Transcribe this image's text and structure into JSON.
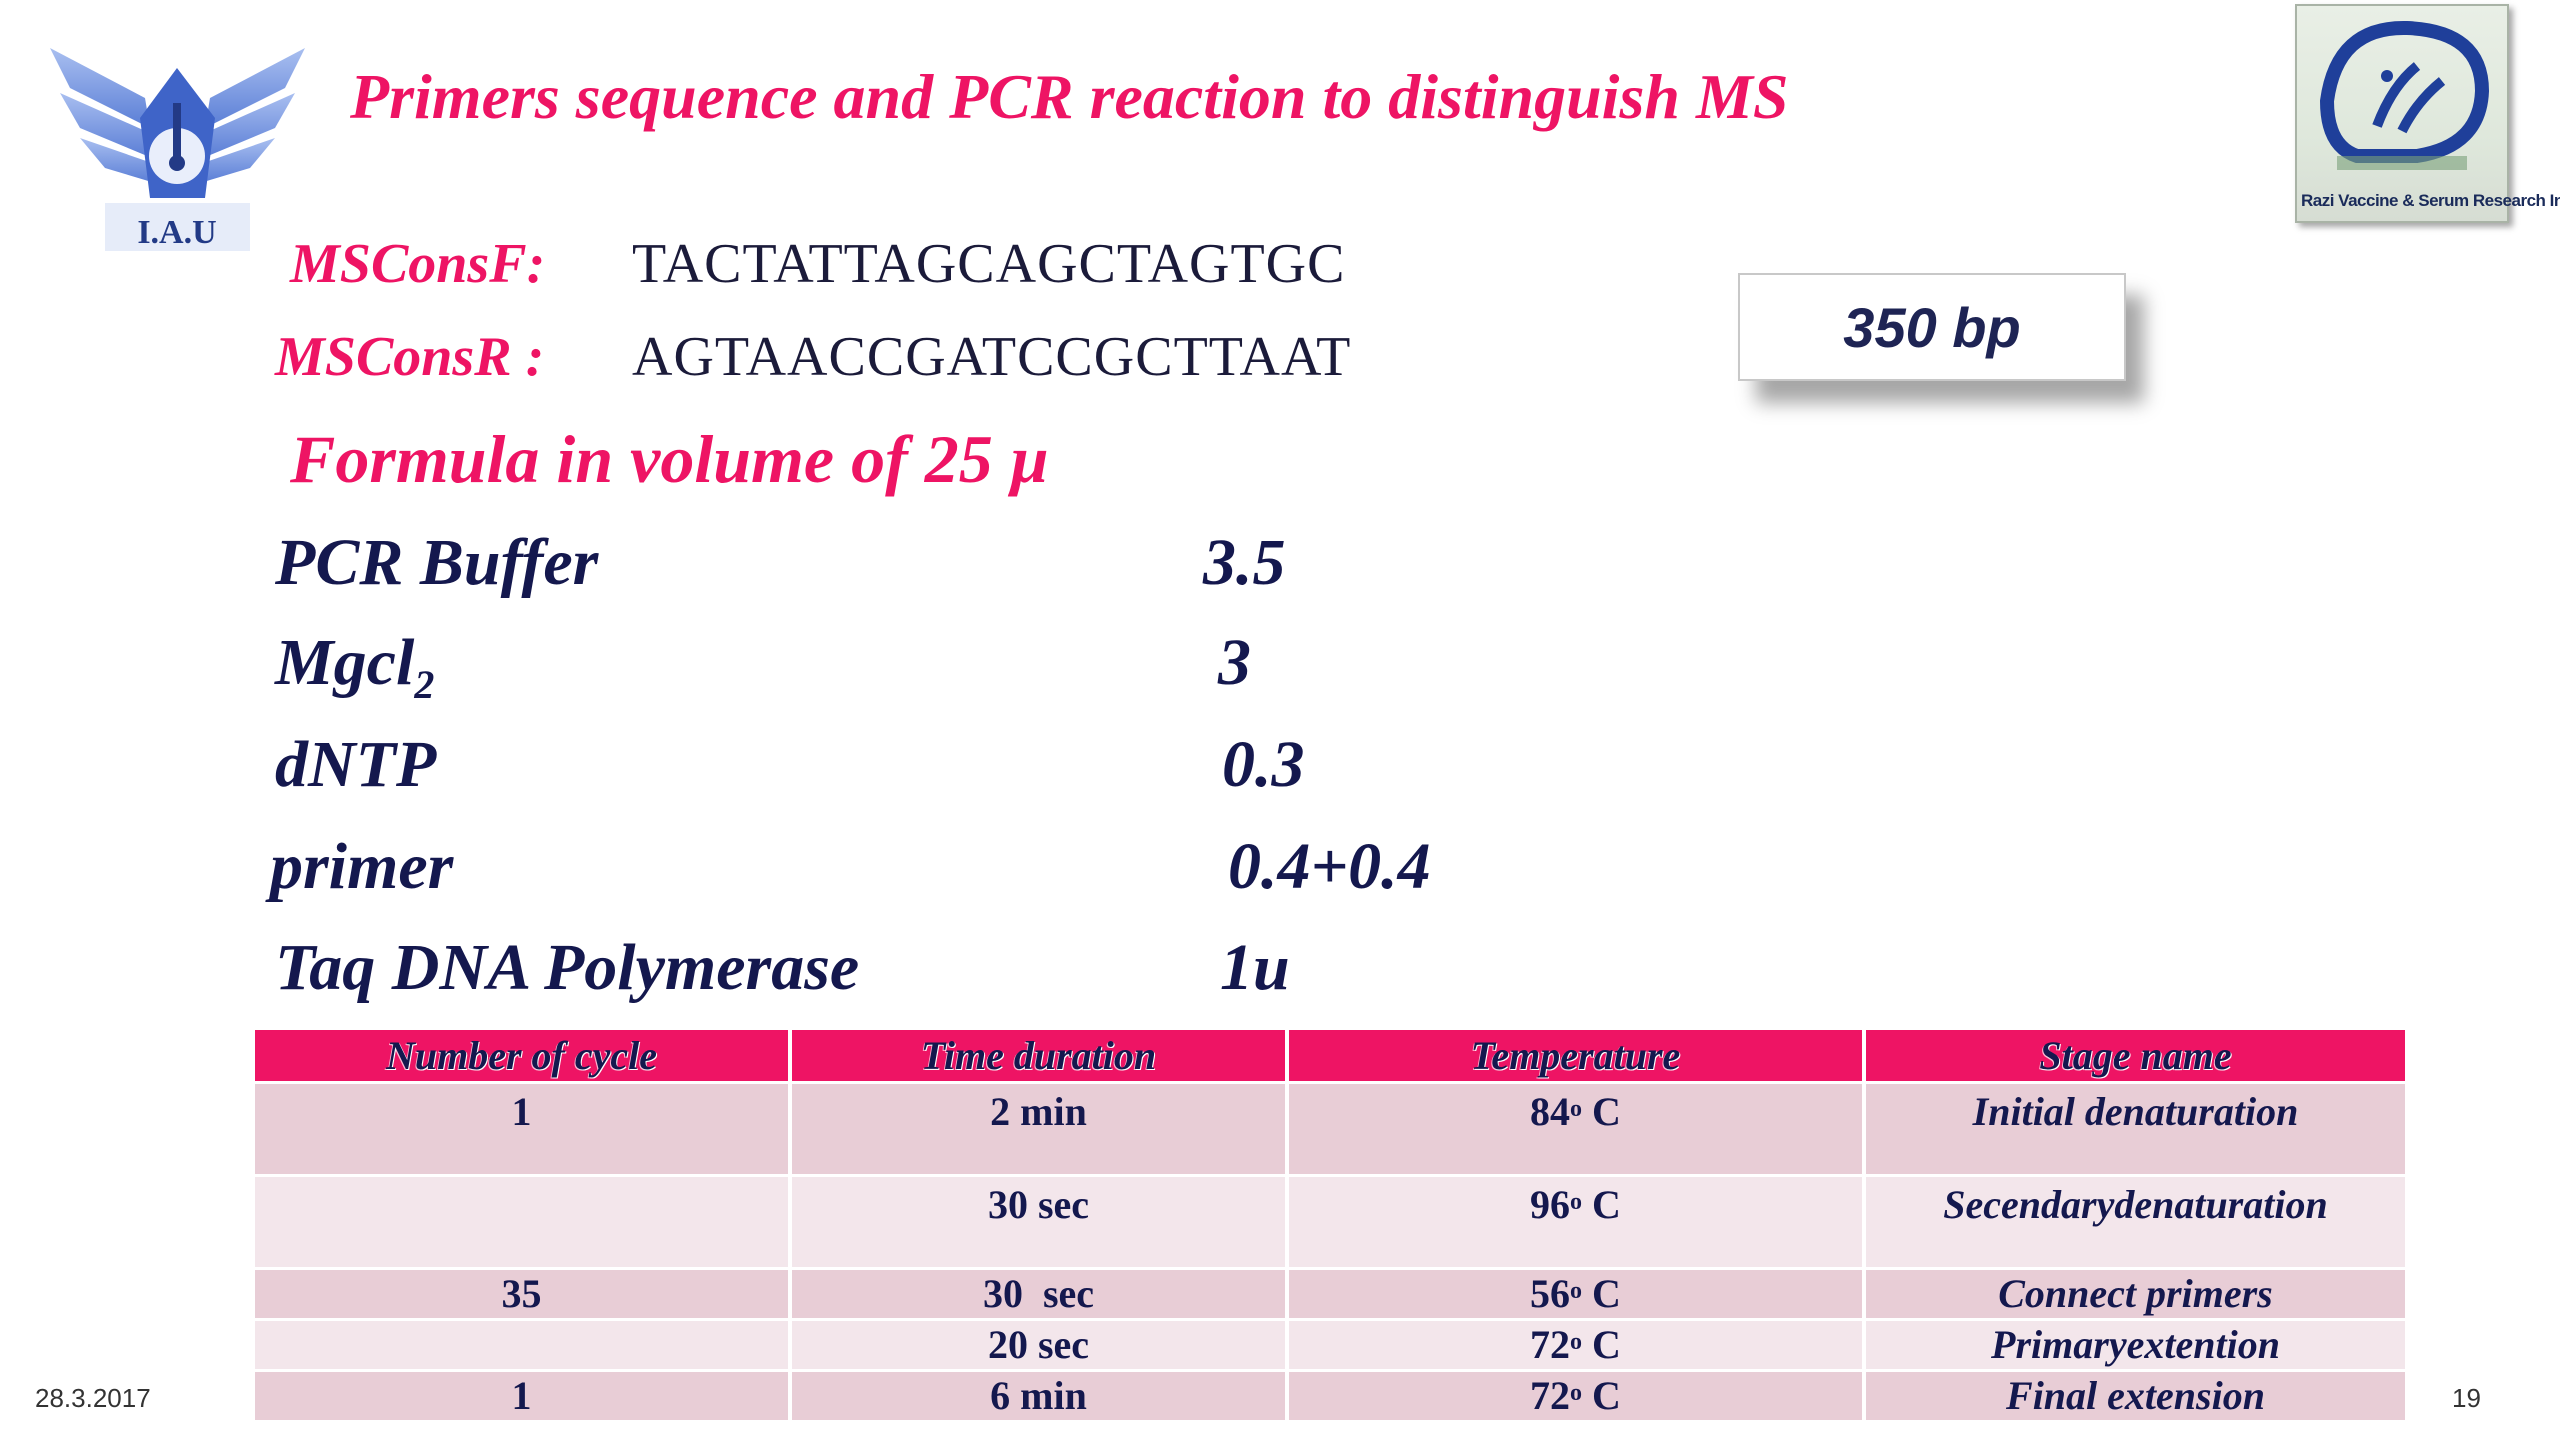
{
  "logos": {
    "left_text": "I.A.U",
    "right_text": "Razi Vaccine & Serum Research Institute"
  },
  "title": "Primers sequence and PCR reaction to distinguish MS",
  "primers": [
    {
      "label": "MSConsF:",
      "sequence": "TACTATTAGCAGCTAGTGC"
    },
    {
      "label": "MSConsR :",
      "sequence": "AGTAACCGATCCGCTTAAT"
    }
  ],
  "product_size": "350 bp",
  "formula_heading": "Formula in volume of 25 µ",
  "reagents": [
    {
      "name": "PCR Buffer",
      "value": "3.5"
    },
    {
      "name": "Mgcl",
      "sub": "2",
      "value": "3"
    },
    {
      "name": "dNTP",
      "value": "0.3"
    },
    {
      "name": "primer",
      "value": "0.4+0.4"
    },
    {
      "name": "Taq DNA Polymerase",
      "value": "1u"
    }
  ],
  "table": {
    "headers": [
      "Number of cycle",
      "Time duration",
      "Temperature",
      "Stage name"
    ],
    "rows": [
      {
        "cycles": "1",
        "time": "2 min",
        "temp": "84",
        "unit": "C",
        "stage": "Initial denaturation"
      },
      {
        "cycles": "",
        "time": "30 sec",
        "temp": "96",
        "unit": "C",
        "stage": "Secendarydenaturation"
      },
      {
        "cycles": "35",
        "time": "30  sec",
        "temp": "56",
        "unit": "C",
        "stage": "Connect primers"
      },
      {
        "cycles": "",
        "time": "20 sec",
        "temp": "72",
        "unit": "C",
        "stage": "Primaryextention"
      },
      {
        "cycles": "1",
        "time": "6 min",
        "temp": "72",
        "unit": "C",
        "stage": "Final extension"
      }
    ],
    "degree_mark": "o"
  },
  "footer": {
    "date": "28.3.2017",
    "page": "19"
  },
  "colors": {
    "accent": "#ee1464",
    "text_dark": "#14184e",
    "row_dark": "#e8cdd6",
    "row_light": "#f3e6eb",
    "logo_blue": "#6f8fdc"
  }
}
